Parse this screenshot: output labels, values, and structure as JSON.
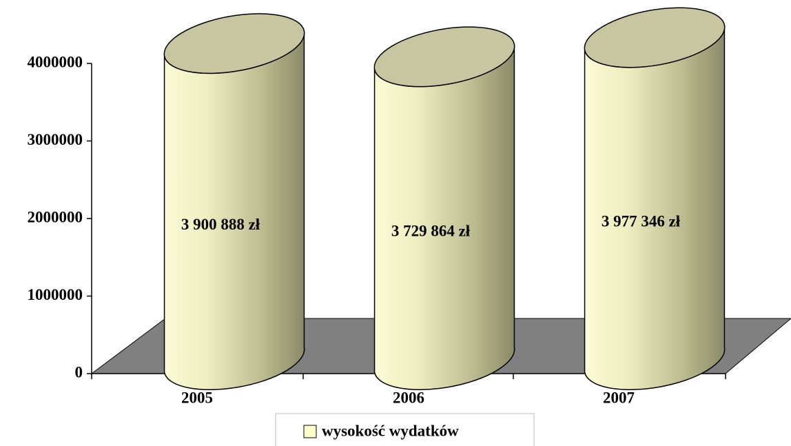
{
  "chart_data": {
    "type": "cylinder",
    "categories": [
      "2005",
      "2006",
      "2007"
    ],
    "series": [
      {
        "name": "wysokość wydatków",
        "color": "#ffffcc",
        "values": [
          3900888,
          3729864,
          3977346
        ],
        "value_labels": [
          "3 900 888 zł",
          "3 729 864 zł",
          "3 977 346 zł"
        ]
      }
    ],
    "ylim": [
      0,
      4000000
    ],
    "yticks": [
      0,
      1000000,
      2000000,
      3000000,
      4000000
    ],
    "legend": "bottom"
  }
}
